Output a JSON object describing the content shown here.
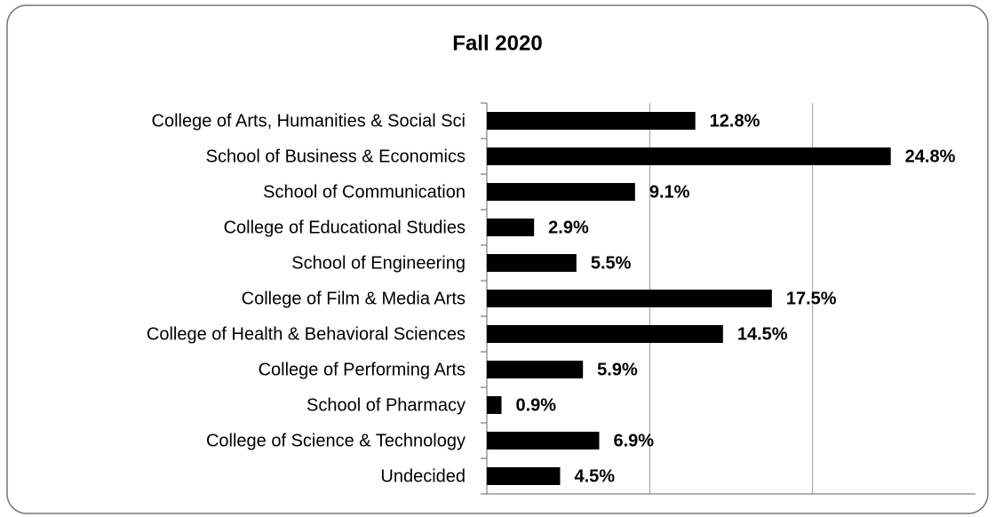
{
  "chart_data": {
    "type": "barh",
    "title": "Fall 2020",
    "categories": [
      "College of Arts, Humanities & Social Sci",
      "School of Business & Economics",
      "School of Communication",
      "College of Educational Studies",
      "School of Engineering",
      "College of Film & Media Arts",
      "College of Health & Behavioral Sciences",
      "College of Performing Arts",
      "School of Pharmacy",
      "College of Science & Technology",
      "Undecided"
    ],
    "values": [
      12.8,
      24.8,
      9.1,
      2.9,
      5.5,
      17.5,
      14.5,
      5.9,
      0.9,
      6.9,
      4.5
    ],
    "value_labels": [
      "12.8%",
      "24.8%",
      "9.1%",
      "2.9%",
      "5.5%",
      "17.5%",
      "14.5%",
      "5.9%",
      "0.9%",
      "6.9%",
      "4.5%"
    ],
    "color": "#000000",
    "xlim": [
      0,
      30
    ],
    "xticks": [
      0,
      10,
      20,
      30
    ],
    "grid": true
  }
}
